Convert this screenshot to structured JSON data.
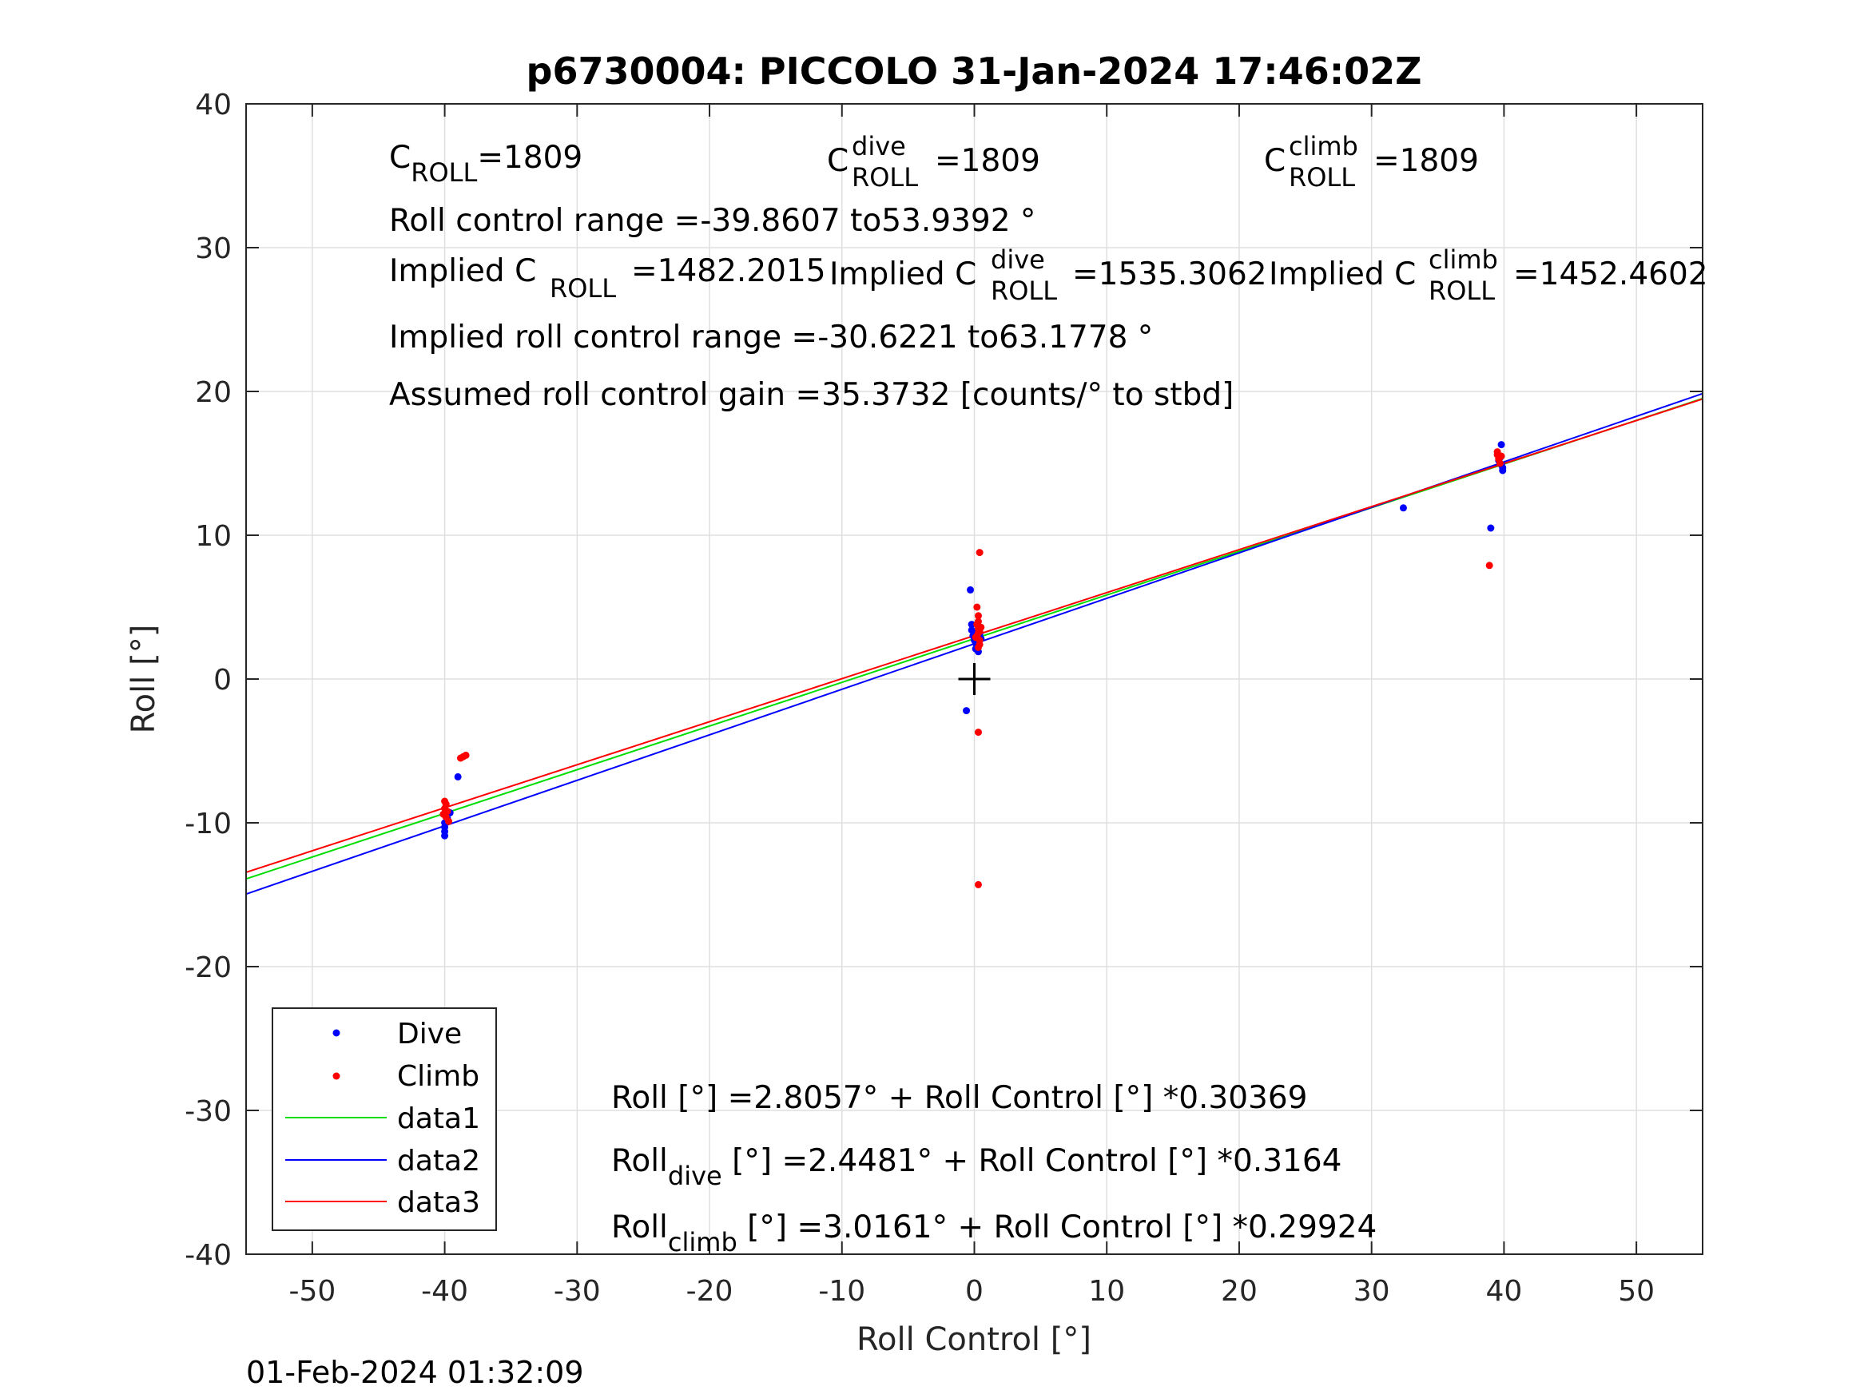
{
  "chart_data": {
    "type": "scatter",
    "title": "p6730004: PICCOLO 31-Jan-2024 17:46:02Z",
    "xlabel": "Roll Control [°]",
    "ylabel": "Roll [°]",
    "xlim": [
      -55,
      55
    ],
    "ylim": [
      -40,
      40
    ],
    "xticks": [
      -50,
      -40,
      -30,
      -20,
      -10,
      0,
      10,
      20,
      30,
      40,
      50
    ],
    "yticks": [
      -40,
      -30,
      -20,
      -10,
      0,
      10,
      20,
      30,
      40
    ],
    "grid": true,
    "legend_placement": "bottom-left",
    "center_marker": {
      "x": 0,
      "y": 0
    },
    "series": [
      {
        "name": "Dive",
        "style": "points",
        "color": "#0000ff",
        "points": [
          [
            -40.0,
            -10.9
          ],
          [
            -40.0,
            -10.6
          ],
          [
            -40.0,
            -10.3
          ],
          [
            -40.0,
            -10.0
          ],
          [
            -39.8,
            -9.7
          ],
          [
            -39.6,
            -9.3
          ],
          [
            -39.0,
            -6.8
          ],
          [
            -0.6,
            -2.2
          ],
          [
            -0.3,
            6.2
          ],
          [
            -0.2,
            3.8
          ],
          [
            -0.2,
            3.4
          ],
          [
            -0.1,
            3.0
          ],
          [
            0.0,
            2.7
          ],
          [
            0.1,
            2.5
          ],
          [
            0.1,
            3.2
          ],
          [
            0.2,
            2.9
          ],
          [
            0.2,
            2.3
          ],
          [
            0.3,
            1.9
          ],
          [
            0.3,
            2.6
          ],
          [
            0.4,
            3.1
          ],
          [
            0.5,
            2.8
          ],
          [
            0.1,
            2.1
          ],
          [
            32.4,
            11.9
          ],
          [
            39.0,
            10.5
          ],
          [
            39.8,
            16.3
          ],
          [
            39.7,
            15.4
          ],
          [
            39.8,
            14.9
          ],
          [
            39.9,
            14.5
          ],
          [
            39.6,
            15.2
          ],
          [
            39.9,
            14.7
          ]
        ]
      },
      {
        "name": "Climb",
        "style": "points",
        "color": "#ff0000",
        "points": [
          [
            -40.0,
            -8.5
          ],
          [
            -39.9,
            -8.7
          ],
          [
            -40.0,
            -9.0
          ],
          [
            -39.8,
            -9.2
          ],
          [
            -40.1,
            -9.4
          ],
          [
            -39.9,
            -9.6
          ],
          [
            -39.7,
            -9.9
          ],
          [
            -38.8,
            -5.5
          ],
          [
            -38.6,
            -5.4
          ],
          [
            -38.4,
            -5.3
          ],
          [
            0.2,
            3.0
          ],
          [
            0.3,
            3.5
          ],
          [
            0.3,
            4.0
          ],
          [
            0.4,
            2.7
          ],
          [
            0.4,
            3.3
          ],
          [
            0.2,
            5.0
          ],
          [
            0.3,
            4.4
          ],
          [
            0.4,
            2.4
          ],
          [
            0.2,
            3.8
          ],
          [
            0.3,
            3.2
          ],
          [
            0.1,
            2.9
          ],
          [
            0.5,
            3.6
          ],
          [
            0.3,
            2.2
          ],
          [
            0.4,
            8.8
          ],
          [
            0.3,
            -3.7
          ],
          [
            0.3,
            -14.3
          ],
          [
            38.9,
            7.9
          ],
          [
            39.5,
            15.6
          ],
          [
            39.6,
            15.3
          ],
          [
            39.7,
            15.0
          ],
          [
            39.5,
            15.8
          ],
          [
            39.8,
            15.5
          ]
        ]
      },
      {
        "name": "data1",
        "style": "line",
        "color": "#00dd00",
        "intercept": 2.8057,
        "slope": 0.30369
      },
      {
        "name": "data2",
        "style": "line",
        "color": "#0000ff",
        "intercept": 2.4481,
        "slope": 0.3164
      },
      {
        "name": "data3",
        "style": "line",
        "color": "#ff0000",
        "intercept": 3.0161,
        "slope": 0.29924
      }
    ],
    "annotations": {
      "c_roll": {
        "base": "C",
        "sub": "ROLL",
        "value": "=1809"
      },
      "c_roll_dive": {
        "base": "C",
        "sup": "dive",
        "sub": "ROLL",
        "value": "=1809"
      },
      "c_roll_climb": {
        "base": "C",
        "sup": "climb",
        "sub": "ROLL",
        "value": "=1809"
      },
      "roll_control_range": "Roll control range =-39.8607 to53.9392 °",
      "implied_c_roll": {
        "prefix": "Implied C",
        "sub": "ROLL",
        "value": "=1482.2015"
      },
      "implied_c_roll_dive": {
        "prefix": "Implied C",
        "sup": "dive",
        "sub": "ROLL",
        "value": "=1535.3062"
      },
      "implied_c_roll_climb": {
        "prefix": "Implied C",
        "sup": "climb",
        "sub": "ROLL",
        "value": "=1452.4602"
      },
      "implied_range": "Implied roll control range =-30.6221 to63.1778 °",
      "gain": "Assumed roll control gain =35.3732 [counts/° to stbd]",
      "fit_all": "Roll [°] =2.8057° + Roll Control [°] *0.30369",
      "fit_dive": {
        "base": "Roll",
        "sub": "dive",
        "rest": " [°] =2.4481° + Roll Control [°] *0.3164"
      },
      "fit_climb": {
        "base": "Roll",
        "sub": "climb",
        "rest": " [°] =3.0161° + Roll Control [°] *0.29924"
      }
    }
  },
  "footer_timestamp": "01-Feb-2024 01:32:09"
}
